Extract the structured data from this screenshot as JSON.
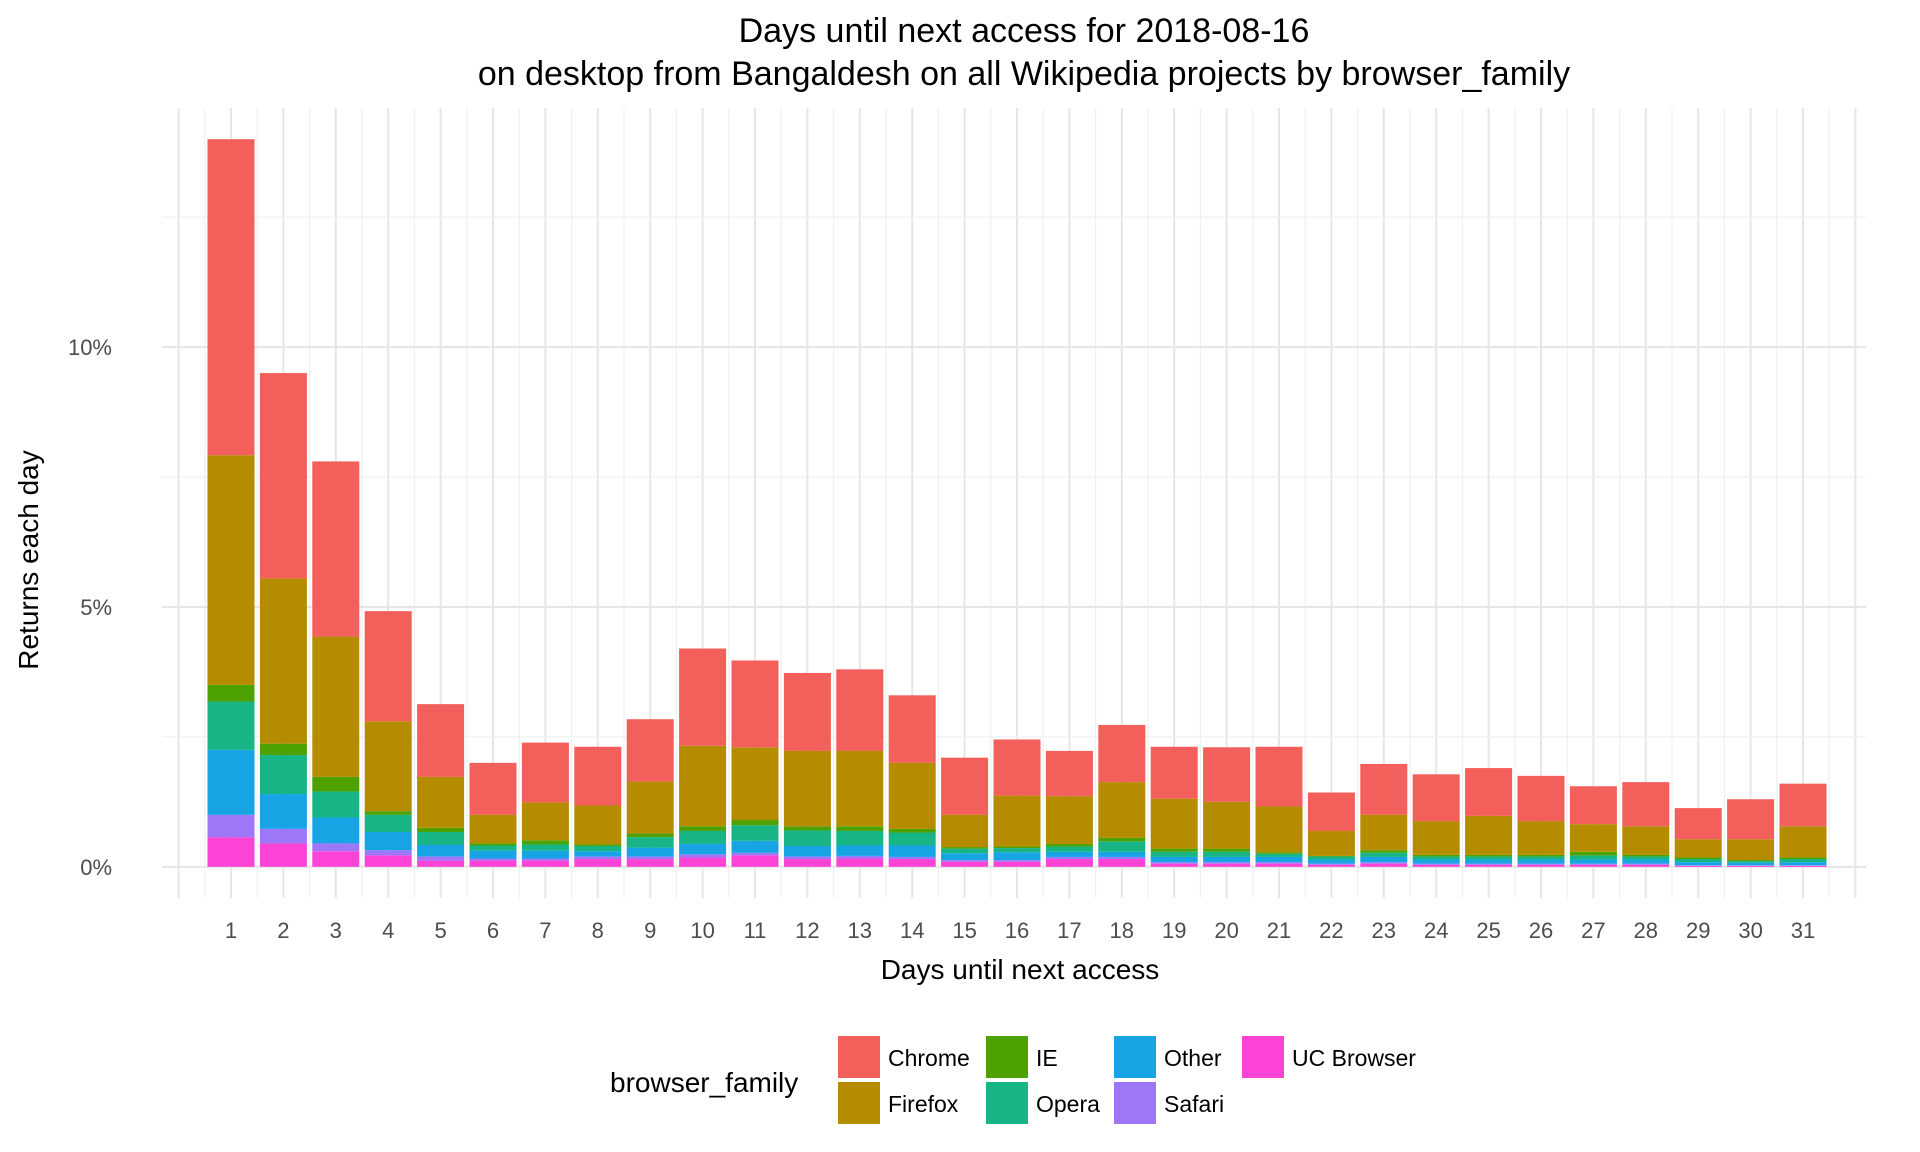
{
  "chart_data": {
    "type": "bar",
    "stacked": true,
    "title_line1": "Days until next access for 2018-08-16",
    "title_line2": "on desktop from Bangaldesh on all Wikipedia projects by browser_family",
    "xlabel": "Days until next access",
    "ylabel": "Returns each day",
    "ylim": [
      -0.6,
      14.6
    ],
    "y_ticks": [
      0,
      5,
      10
    ],
    "y_tick_labels": [
      "0%",
      "5%",
      "10%"
    ],
    "grid": true,
    "legend_title": "browser_family",
    "legend_position": "bottom",
    "categories": [
      "1",
      "2",
      "3",
      "4",
      "5",
      "6",
      "7",
      "8",
      "9",
      "10",
      "11",
      "12",
      "13",
      "14",
      "15",
      "16",
      "17",
      "18",
      "19",
      "20",
      "21",
      "22",
      "23",
      "24",
      "25",
      "26",
      "27",
      "28",
      "29",
      "30",
      "31"
    ],
    "series": [
      {
        "name": "UC Browser",
        "color": "#FB44D6",
        "values": [
          0.57,
          0.45,
          0.3,
          0.22,
          0.12,
          0.12,
          0.12,
          0.15,
          0.15,
          0.18,
          0.22,
          0.15,
          0.16,
          0.15,
          0.1,
          0.1,
          0.15,
          0.15,
          0.06,
          0.06,
          0.06,
          0.04,
          0.06,
          0.04,
          0.04,
          0.04,
          0.04,
          0.04,
          0.02,
          0.02,
          0.02
        ]
      },
      {
        "name": "Safari",
        "color": "#9E77F8",
        "values": [
          0.43,
          0.28,
          0.15,
          0.1,
          0.08,
          0.04,
          0.04,
          0.05,
          0.05,
          0.06,
          0.05,
          0.05,
          0.05,
          0.04,
          0.03,
          0.03,
          0.04,
          0.04,
          0.03,
          0.03,
          0.03,
          0.02,
          0.03,
          0.02,
          0.02,
          0.02,
          0.02,
          0.02,
          0.01,
          0.01,
          0.01
        ]
      },
      {
        "name": "Other",
        "color": "#16A4E4",
        "values": [
          1.25,
          0.67,
          0.5,
          0.35,
          0.22,
          0.15,
          0.15,
          0.1,
          0.17,
          0.2,
          0.23,
          0.2,
          0.2,
          0.22,
          0.13,
          0.15,
          0.1,
          0.1,
          0.1,
          0.1,
          0.1,
          0.08,
          0.1,
          0.08,
          0.08,
          0.08,
          0.08,
          0.08,
          0.06,
          0.05,
          0.06
        ]
      },
      {
        "name": "Opera",
        "color": "#17B585",
        "values": [
          0.93,
          0.75,
          0.5,
          0.33,
          0.25,
          0.1,
          0.12,
          0.1,
          0.2,
          0.25,
          0.3,
          0.3,
          0.28,
          0.25,
          0.09,
          0.08,
          0.1,
          0.2,
          0.1,
          0.1,
          0.06,
          0.06,
          0.08,
          0.06,
          0.06,
          0.06,
          0.08,
          0.06,
          0.06,
          0.03,
          0.06
        ]
      },
      {
        "name": "IE",
        "color": "#4DA100",
        "values": [
          0.32,
          0.22,
          0.28,
          0.07,
          0.08,
          0.04,
          0.08,
          0.03,
          0.07,
          0.09,
          0.1,
          0.08,
          0.09,
          0.07,
          0.03,
          0.03,
          0.05,
          0.07,
          0.06,
          0.06,
          0.03,
          0.01,
          0.05,
          0.03,
          0.03,
          0.03,
          0.07,
          0.03,
          0.03,
          0.02,
          0.03
        ]
      },
      {
        "name": "Firefox",
        "color": "#B58B00",
        "values": [
          4.42,
          3.18,
          2.7,
          1.73,
          0.98,
          0.55,
          0.73,
          0.75,
          1.0,
          1.55,
          1.4,
          1.45,
          1.45,
          1.27,
          0.62,
          0.98,
          0.92,
          1.07,
          0.96,
          0.9,
          0.88,
          0.48,
          0.68,
          0.65,
          0.75,
          0.65,
          0.53,
          0.55,
          0.35,
          0.4,
          0.6
        ]
      },
      {
        "name": "Chrome",
        "color": "#F35F5A",
        "values": [
          6.08,
          3.95,
          3.37,
          2.12,
          1.4,
          1.0,
          1.15,
          1.13,
          1.2,
          1.87,
          1.67,
          1.5,
          1.57,
          1.3,
          1.1,
          1.08,
          0.87,
          1.1,
          1.0,
          1.05,
          1.15,
          0.74,
          0.98,
          0.9,
          0.92,
          0.87,
          0.73,
          0.85,
          0.6,
          0.77,
          0.82
        ]
      }
    ],
    "legend_order": [
      "Chrome",
      "Firefox",
      "IE",
      "Opera",
      "Other",
      "Safari",
      "UC Browser"
    ]
  }
}
